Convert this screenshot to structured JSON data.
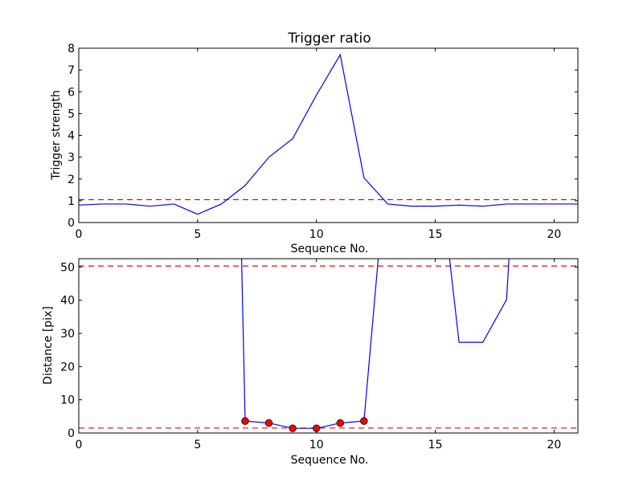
{
  "chart_data": [
    {
      "type": "line",
      "title": "Trigger ratio",
      "xlabel": "Sequence No.",
      "ylabel": "Trigger strength",
      "xlim": [
        0,
        21
      ],
      "ylim": [
        0,
        8
      ],
      "xticks": [
        0,
        5,
        10,
        15,
        20
      ],
      "yticks": [
        0,
        1,
        2,
        3,
        4,
        5,
        6,
        7,
        8
      ],
      "grid": false,
      "series": [
        {
          "color": "#0000ff",
          "style": "solid",
          "x": [
            0,
            1,
            2,
            3,
            4,
            5,
            6,
            7,
            8,
            9,
            10,
            11,
            12,
            13,
            14,
            15,
            16,
            17,
            18,
            19,
            20,
            21
          ],
          "y": [
            0.8,
            0.85,
            0.85,
            0.75,
            0.85,
            0.38,
            0.85,
            1.7,
            3.0,
            3.85,
            5.85,
            7.7,
            2.05,
            0.85,
            0.75,
            0.75,
            0.8,
            0.75,
            0.85,
            0.85,
            0.85,
            0.85
          ]
        }
      ],
      "hlines": [
        {
          "y": 1.05,
          "color": "#ff0000",
          "style": "dashed"
        }
      ]
    },
    {
      "type": "line",
      "title": "",
      "xlabel": "Sequence No.",
      "ylabel": "Distance [pix]",
      "xlim": [
        0,
        21
      ],
      "ylim": [
        0,
        52.5
      ],
      "xticks": [
        0,
        5,
        10,
        15,
        20
      ],
      "yticks": [
        0,
        10,
        20,
        30,
        40,
        50
      ],
      "grid": false,
      "series": [
        {
          "color": "#0000ff",
          "style": "solid",
          "segments": [
            {
              "x": [
                6.85,
                7,
                8,
                9,
                10,
                11,
                12,
                12.6
              ],
              "y": [
                52.5,
                3.6,
                3.0,
                1.4,
                1.4,
                3.0,
                3.6,
                52.5
              ]
            },
            {
              "x": [
                15.6,
                16,
                17,
                18,
                18.1
              ],
              "y": [
                52.5,
                27.3,
                27.3,
                40.2,
                52.5
              ]
            }
          ]
        },
        {
          "color": "#ff0000",
          "style": "markers",
          "x": [
            7,
            8,
            9,
            10,
            11,
            12
          ],
          "y": [
            3.6,
            3.0,
            1.4,
            1.4,
            3.0,
            3.6
          ]
        }
      ],
      "hlines": [
        {
          "y": 50.3,
          "color": "#ff0000",
          "style": "dashed"
        },
        {
          "y": 1.5,
          "color": "#ff0000",
          "style": "dashed"
        }
      ]
    }
  ]
}
